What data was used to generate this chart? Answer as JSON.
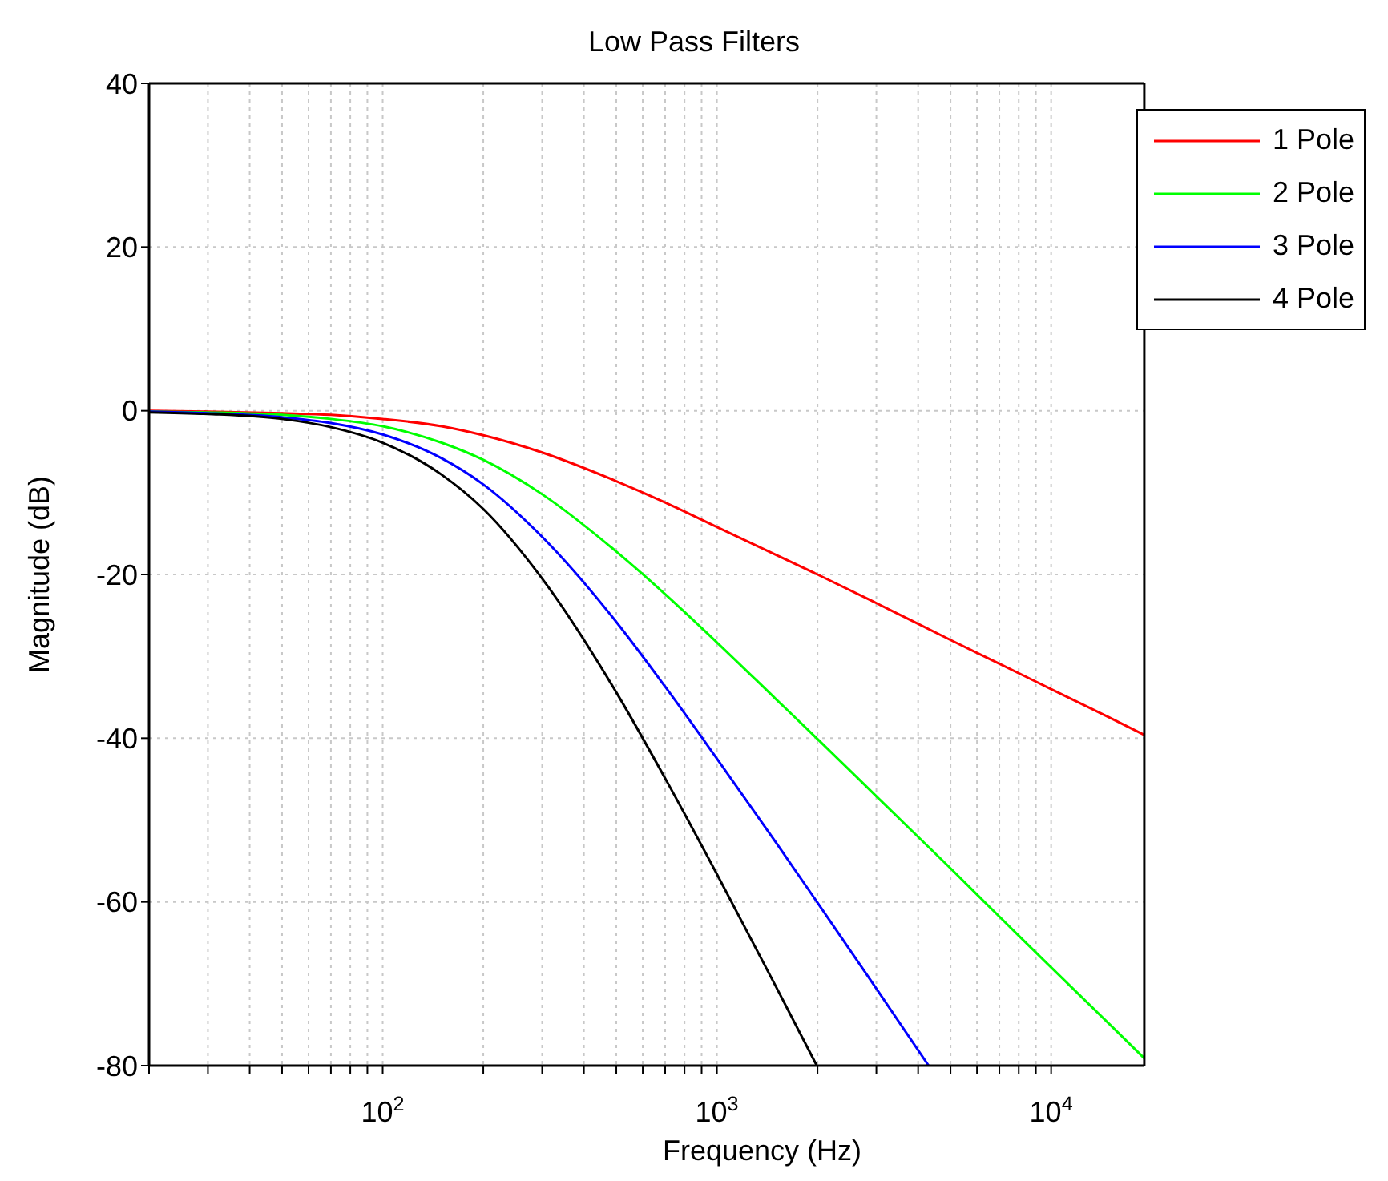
{
  "chart_data": {
    "type": "line",
    "title": "Low Pass Filters",
    "xlabel": "Frequency (Hz)",
    "ylabel": "Magnitude (dB)",
    "log": "x",
    "grid": true,
    "legend": "top right",
    "marker": "none",
    "line_style": "solid",
    "xlim": [
      20,
      19000
    ],
    "ylim": [
      -80,
      40
    ],
    "yticks": [
      -80,
      -60,
      -40,
      -20,
      0,
      20,
      40
    ],
    "xticks": [
      {
        "value": 20,
        "label": null
      },
      {
        "value": 30,
        "label": null
      },
      {
        "value": 40,
        "label": null
      },
      {
        "value": 50,
        "label": null
      },
      {
        "value": 60,
        "label": null
      },
      {
        "value": 70,
        "label": null
      },
      {
        "value": 80,
        "label": null
      },
      {
        "value": 90,
        "label": null
      },
      {
        "value": 100,
        "label": "10$^{2}$"
      },
      {
        "value": 200,
        "label": null
      },
      {
        "value": 300,
        "label": null
      },
      {
        "value": 400,
        "label": null
      },
      {
        "value": 500,
        "label": null
      },
      {
        "value": 600,
        "label": null
      },
      {
        "value": 700,
        "label": null
      },
      {
        "value": 800,
        "label": null
      },
      {
        "value": 900,
        "label": null
      },
      {
        "value": 1000,
        "label": "10$^{3}$"
      },
      {
        "value": 2000,
        "label": null
      },
      {
        "value": 3000,
        "label": null
      },
      {
        "value": 4000,
        "label": null
      },
      {
        "value": 5000,
        "label": null
      },
      {
        "value": 6000,
        "label": null
      },
      {
        "value": 7000,
        "label": null
      },
      {
        "value": 8000,
        "label": null
      },
      {
        "value": 9000,
        "label": null
      },
      {
        "value": 10000,
        "label": "10$^{4}$"
      }
    ],
    "series": [
      {
        "name": "1 Pole",
        "color": "#ff0000",
        "x": [
          20,
          30,
          50,
          70,
          100,
          150,
          200,
          300,
          500,
          700,
          1000,
          1500,
          2000,
          3000,
          5000,
          7000,
          10000,
          15000,
          19000
        ],
        "values": [
          0,
          -0.1,
          -0.3,
          -0.5,
          -1,
          -1.9,
          -3,
          -5.1,
          -8.6,
          -11.2,
          -14.2,
          -17.6,
          -20,
          -23.5,
          -28,
          -30.9,
          -34,
          -37.5,
          -39.6
        ]
      },
      {
        "name": "2 Pole",
        "color": "#00ff00",
        "x": [
          20,
          30,
          50,
          70,
          100,
          150,
          200,
          300,
          500,
          700,
          1000,
          1500,
          2000,
          3000,
          5000,
          7000,
          10000,
          15000,
          19000
        ],
        "values": [
          -0.1,
          -0.2,
          -0.5,
          -1,
          -1.9,
          -3.9,
          -6,
          -10.2,
          -17.2,
          -22.4,
          -28.3,
          -35.2,
          -40.1,
          -47.1,
          -55.9,
          -61.8,
          -68,
          -75,
          -79.1
        ]
      },
      {
        "name": "3 Pole",
        "color": "#0000ff",
        "x": [
          20,
          30,
          50,
          70,
          100,
          150,
          200,
          300,
          500,
          700,
          1000,
          1500,
          2000,
          3000,
          4300
        ],
        "values": [
          -0.1,
          -0.3,
          -0.8,
          -1.5,
          -2.9,
          -5.8,
          -9,
          -15.4,
          -25.8,
          -33.7,
          -42.5,
          -52.7,
          -60.1,
          -70.6,
          -80
        ]
      },
      {
        "name": "4 Pole",
        "color": "#000000",
        "x": [
          20,
          30,
          50,
          70,
          100,
          150,
          200,
          300,
          500,
          700,
          1000,
          1500,
          1990
        ],
        "values": [
          -0.2,
          -0.4,
          -1,
          -2,
          -3.9,
          -7.8,
          -12,
          -20.5,
          -34.4,
          -44.9,
          -56.6,
          -70.3,
          -80
        ]
      }
    ]
  }
}
